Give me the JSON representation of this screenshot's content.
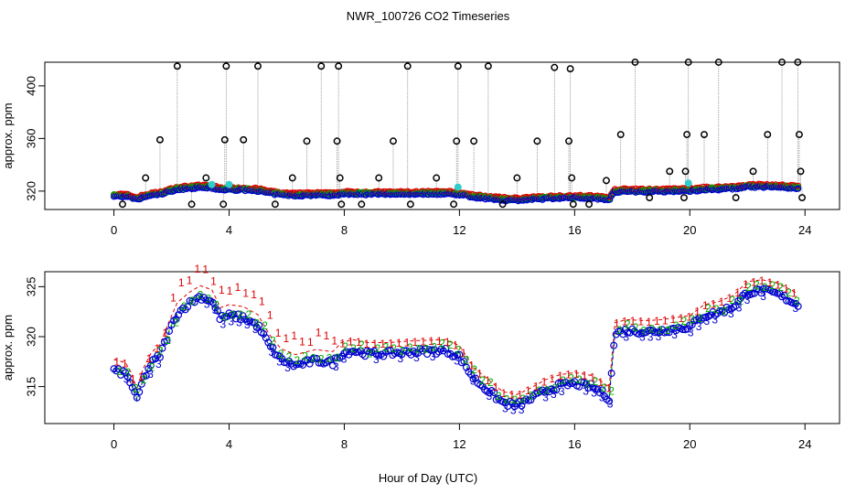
{
  "title": "NWR_100726  CO2 Timeseries",
  "xlabel": "Hour of Day (UTC)",
  "colors": {
    "axis": "#000000",
    "series1": "#dd0000",
    "series2": "#00aa00",
    "series3": "#0000cc",
    "raw": "#000000",
    "cyan": "#33cccc",
    "spike_line": "#999999"
  },
  "chart_data": [
    {
      "type": "scatter",
      "panel": "top",
      "ylabel": "approx. ppm",
      "xlim": [
        -2.4,
        25.2
      ],
      "ylim": [
        306,
        418
      ],
      "xticks": [
        0,
        4,
        8,
        12,
        16,
        20,
        24
      ],
      "xtick_labels": [
        "0",
        "4",
        "8",
        "12",
        "16",
        "20",
        "24"
      ],
      "yticks": [
        320,
        360,
        400
      ],
      "ytick_labels": [
        "320",
        "360",
        "400"
      ],
      "spikes": [
        [
          0.3,
          310
        ],
        [
          1.1,
          330
        ],
        [
          1.6,
          359
        ],
        [
          2.2,
          415
        ],
        [
          2.7,
          310
        ],
        [
          3.2,
          330
        ],
        [
          3.8,
          310
        ],
        [
          3.85,
          359
        ],
        [
          3.9,
          415
        ],
        [
          4.5,
          359
        ],
        [
          5.0,
          415
        ],
        [
          5.6,
          310
        ],
        [
          6.2,
          330
        ],
        [
          6.7,
          358
        ],
        [
          7.2,
          415
        ],
        [
          7.75,
          358
        ],
        [
          7.8,
          415
        ],
        [
          7.85,
          330
        ],
        [
          7.9,
          310
        ],
        [
          8.6,
          310
        ],
        [
          9.2,
          330
        ],
        [
          9.7,
          358
        ],
        [
          10.3,
          310
        ],
        [
          10.2,
          415
        ],
        [
          11.2,
          330
        ],
        [
          11.8,
          310
        ],
        [
          11.9,
          358
        ],
        [
          11.95,
          415
        ],
        [
          12.5,
          358
        ],
        [
          13.0,
          415
        ],
        [
          13.5,
          310
        ],
        [
          14.0,
          330
        ],
        [
          14.7,
          358
        ],
        [
          15.3,
          414
        ],
        [
          15.8,
          358
        ],
        [
          15.85,
          413
        ],
        [
          15.9,
          330
        ],
        [
          15.95,
          310
        ],
        [
          16.5,
          310
        ],
        [
          17.1,
          328
        ],
        [
          17.6,
          363
        ],
        [
          18.1,
          418
        ],
        [
          18.6,
          315
        ],
        [
          19.3,
          335
        ],
        [
          19.8,
          315
        ],
        [
          19.85,
          335
        ],
        [
          19.9,
          363
        ],
        [
          19.95,
          418
        ],
        [
          20.5,
          363
        ],
        [
          21.0,
          418
        ],
        [
          21.6,
          315
        ],
        [
          22.2,
          335
        ],
        [
          22.7,
          363
        ],
        [
          23.2,
          418
        ],
        [
          23.75,
          418
        ],
        [
          23.8,
          363
        ],
        [
          23.85,
          335
        ],
        [
          23.9,
          315
        ]
      ],
      "cyan_points": [
        [
          3.4,
          325
        ],
        [
          4.0,
          325
        ],
        [
          11.95,
          323
        ],
        [
          19.95,
          326
        ]
      ]
    },
    {
      "type": "scatter",
      "panel": "bottom",
      "ylabel": "approx. ppm",
      "xlim": [
        -2.4,
        25.2
      ],
      "ylim": [
        311.3,
        326.5
      ],
      "xticks": [
        0,
        4,
        8,
        12,
        16,
        20,
        24
      ],
      "xtick_labels": [
        "0",
        "4",
        "8",
        "12",
        "16",
        "20",
        "24"
      ],
      "yticks": [
        315,
        320,
        325
      ],
      "ytick_labels": [
        "315",
        "320",
        "325"
      ],
      "series_labels": [
        "1",
        "2",
        "3"
      ],
      "baseline": [
        [
          0.0,
          316.8
        ],
        [
          0.4,
          316.5
        ],
        [
          0.6,
          315.5
        ],
        [
          0.8,
          313.8
        ],
        [
          1.0,
          315.8
        ],
        [
          1.3,
          317.5
        ],
        [
          1.6,
          318.3
        ],
        [
          1.9,
          320.5
        ],
        [
          2.2,
          322.5
        ],
        [
          2.6,
          323.5
        ],
        [
          3.0,
          324.2
        ],
        [
          3.4,
          323.8
        ],
        [
          3.7,
          322.0
        ],
        [
          4.0,
          322.3
        ],
        [
          4.5,
          322.1
        ],
        [
          5.0,
          321.3
        ],
        [
          5.4,
          319.3
        ],
        [
          5.8,
          317.9
        ],
        [
          6.3,
          317.3
        ],
        [
          7.0,
          317.8
        ],
        [
          7.6,
          317.6
        ],
        [
          7.9,
          318.5
        ],
        [
          8.3,
          318.8
        ],
        [
          8.8,
          318.5
        ],
        [
          9.5,
          318.5
        ],
        [
          10.5,
          318.7
        ],
        [
          11.5,
          318.8
        ],
        [
          12.0,
          318.2
        ],
        [
          12.5,
          316.0
        ],
        [
          13.0,
          314.8
        ],
        [
          13.5,
          313.6
        ],
        [
          14.0,
          313.3
        ],
        [
          14.5,
          314.0
        ],
        [
          15.0,
          314.8
        ],
        [
          15.5,
          315.3
        ],
        [
          16.0,
          315.5
        ],
        [
          16.6,
          315.2
        ],
        [
          17.0,
          314.5
        ],
        [
          17.2,
          314.0
        ],
        [
          17.4,
          320.5
        ],
        [
          17.8,
          320.8
        ],
        [
          18.5,
          320.7
        ],
        [
          19.0,
          320.8
        ],
        [
          19.5,
          321.0
        ],
        [
          20.0,
          321.2
        ],
        [
          20.5,
          322.3
        ],
        [
          21.0,
          322.6
        ],
        [
          21.5,
          323.2
        ],
        [
          22.0,
          324.6
        ],
        [
          22.5,
          324.8
        ],
        [
          23.0,
          324.5
        ],
        [
          23.5,
          323.8
        ],
        [
          23.8,
          323.3
        ]
      ]
    }
  ]
}
